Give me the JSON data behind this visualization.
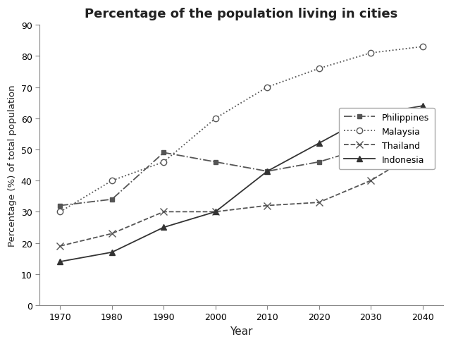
{
  "title": "Percentage of the population living in cities",
  "xlabel": "Year",
  "ylabel": "Percentage (%) of total population",
  "years": [
    1970,
    1980,
    1990,
    2000,
    2010,
    2020,
    2030,
    2040
  ],
  "series": {
    "Philippines": {
      "values": [
        32,
        34,
        49,
        46,
        43,
        46,
        51,
        56
      ],
      "color": "#555555",
      "linestyle": "-.",
      "marker": "s",
      "label": "Philippines",
      "markersize": 5,
      "markerfacecolor": "#555555"
    },
    "Malaysia": {
      "values": [
        30,
        40,
        46,
        60,
        70,
        76,
        81,
        83
      ],
      "color": "#555555",
      "linestyle": ":",
      "marker": "o",
      "label": "Malaysia",
      "markersize": 6,
      "markerfacecolor": "white"
    },
    "Thailand": {
      "values": [
        19,
        23,
        30,
        30,
        32,
        33,
        40,
        50
      ],
      "color": "#555555",
      "linestyle": "--",
      "marker": "x",
      "label": "Thailand",
      "markersize": 7,
      "markerfacecolor": "#555555"
    },
    "Indonesia": {
      "values": [
        14,
        17,
        25,
        30,
        43,
        52,
        61,
        64
      ],
      "color": "#333333",
      "linestyle": "-",
      "marker": "^",
      "label": "Indonesia",
      "markersize": 6,
      "markerfacecolor": "#333333"
    }
  },
  "ylim": [
    0,
    90
  ],
  "yticks": [
    0,
    10,
    20,
    30,
    40,
    50,
    60,
    70,
    80,
    90
  ],
  "background_color": "#ffffff",
  "legend_order": [
    "Philippines",
    "Malaysia",
    "Thailand",
    "Indonesia"
  ]
}
